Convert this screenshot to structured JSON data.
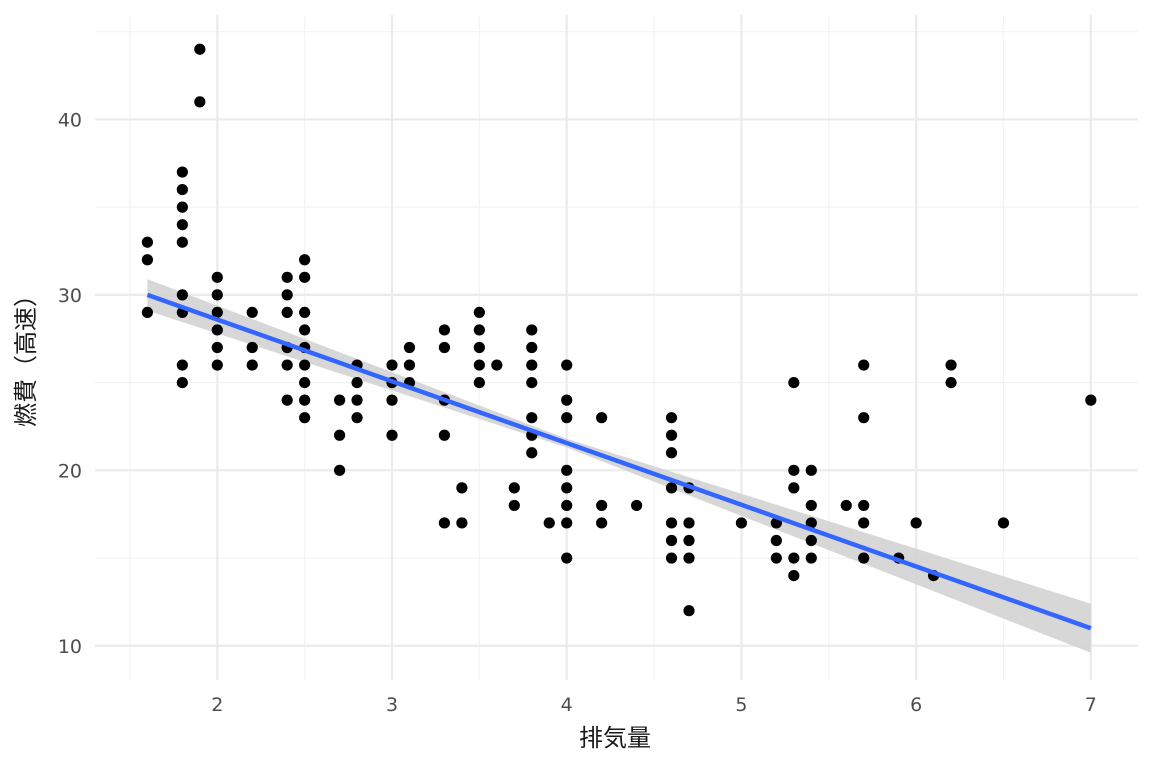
{
  "chart_data": {
    "type": "scatter",
    "xlabel": "排気量",
    "ylabel": "燃費（高速）",
    "xlim": [
      1.3,
      7.27
    ],
    "ylim": [
      8.05,
      45.95
    ],
    "x_ticks": [
      "2",
      "3",
      "4",
      "5",
      "6",
      "7"
    ],
    "y_ticks": [
      "10",
      "20",
      "30",
      "40"
    ],
    "grid": true,
    "colors": {
      "points": "#000000",
      "trend_line": "#3366ff",
      "confidence_band": "#d3d3d3",
      "grid_major": "#ebebeb",
      "grid_minor": "#f3f3f3"
    },
    "trend_line": {
      "x": [
        1.6,
        7.0
      ],
      "y": [
        30.0,
        11.0
      ]
    },
    "confidence_band": {
      "x": [
        1.6,
        7.0
      ],
      "upper": [
        30.9,
        12.4
      ],
      "lower": [
        29.1,
        9.6
      ],
      "mid_x": 4.0,
      "mid_upper": [
        21.8
      ],
      "mid_lower": [
        21.3
      ]
    },
    "points": [
      [
        1.6,
        33
      ],
      [
        1.6,
        32
      ],
      [
        1.6,
        29
      ],
      [
        1.8,
        37
      ],
      [
        1.8,
        36
      ],
      [
        1.8,
        35
      ],
      [
        1.8,
        34
      ],
      [
        1.8,
        33
      ],
      [
        1.8,
        30
      ],
      [
        1.8,
        29
      ],
      [
        1.8,
        26
      ],
      [
        1.8,
        25
      ],
      [
        1.9,
        44
      ],
      [
        1.9,
        41
      ],
      [
        2.0,
        31
      ],
      [
        2.0,
        30
      ],
      [
        2.0,
        29
      ],
      [
        2.0,
        28
      ],
      [
        2.0,
        27
      ],
      [
        2.0,
        26
      ],
      [
        2.2,
        29
      ],
      [
        2.2,
        27
      ],
      [
        2.2,
        26
      ],
      [
        2.4,
        31
      ],
      [
        2.4,
        30
      ],
      [
        2.4,
        29
      ],
      [
        2.4,
        27
      ],
      [
        2.4,
        26
      ],
      [
        2.4,
        24
      ],
      [
        2.5,
        32
      ],
      [
        2.5,
        31
      ],
      [
        2.5,
        29
      ],
      [
        2.5,
        28
      ],
      [
        2.5,
        27
      ],
      [
        2.5,
        26
      ],
      [
        2.5,
        25
      ],
      [
        2.5,
        24
      ],
      [
        2.5,
        23
      ],
      [
        2.7,
        24
      ],
      [
        2.7,
        22
      ],
      [
        2.7,
        20
      ],
      [
        2.8,
        26
      ],
      [
        2.8,
        25
      ],
      [
        2.8,
        24
      ],
      [
        2.8,
        23
      ],
      [
        3.0,
        26
      ],
      [
        3.0,
        25
      ],
      [
        3.0,
        24
      ],
      [
        3.0,
        22
      ],
      [
        3.1,
        27
      ],
      [
        3.1,
        26
      ],
      [
        3.1,
        25
      ],
      [
        3.3,
        28
      ],
      [
        3.3,
        27
      ],
      [
        3.3,
        24
      ],
      [
        3.3,
        22
      ],
      [
        3.3,
        17
      ],
      [
        3.4,
        19
      ],
      [
        3.4,
        17
      ],
      [
        3.5,
        29
      ],
      [
        3.5,
        28
      ],
      [
        3.5,
        27
      ],
      [
        3.5,
        26
      ],
      [
        3.5,
        25
      ],
      [
        3.6,
        26
      ],
      [
        3.7,
        19
      ],
      [
        3.7,
        18
      ],
      [
        3.8,
        28
      ],
      [
        3.8,
        27
      ],
      [
        3.8,
        26
      ],
      [
        3.8,
        25
      ],
      [
        3.8,
        23
      ],
      [
        3.8,
        22
      ],
      [
        3.8,
        21
      ],
      [
        3.9,
        17
      ],
      [
        4.0,
        26
      ],
      [
        4.0,
        24
      ],
      [
        4.0,
        23
      ],
      [
        4.0,
        20
      ],
      [
        4.0,
        19
      ],
      [
        4.0,
        18
      ],
      [
        4.0,
        17
      ],
      [
        4.0,
        15
      ],
      [
        4.2,
        23
      ],
      [
        4.2,
        18
      ],
      [
        4.2,
        17
      ],
      [
        4.4,
        18
      ],
      [
        4.6,
        23
      ],
      [
        4.6,
        22
      ],
      [
        4.6,
        21
      ],
      [
        4.6,
        19
      ],
      [
        4.6,
        17
      ],
      [
        4.6,
        16
      ],
      [
        4.6,
        15
      ],
      [
        4.7,
        19
      ],
      [
        4.7,
        17
      ],
      [
        4.7,
        16
      ],
      [
        4.7,
        15
      ],
      [
        4.7,
        12
      ],
      [
        5.0,
        17
      ],
      [
        5.2,
        17
      ],
      [
        5.2,
        16
      ],
      [
        5.2,
        15
      ],
      [
        5.3,
        25
      ],
      [
        5.3,
        20
      ],
      [
        5.3,
        19
      ],
      [
        5.3,
        15
      ],
      [
        5.3,
        14
      ],
      [
        5.4,
        20
      ],
      [
        5.4,
        18
      ],
      [
        5.4,
        17
      ],
      [
        5.4,
        16
      ],
      [
        5.4,
        15
      ],
      [
        5.6,
        18
      ],
      [
        5.7,
        26
      ],
      [
        5.7,
        23
      ],
      [
        5.7,
        18
      ],
      [
        5.7,
        17
      ],
      [
        5.7,
        15
      ],
      [
        5.9,
        15
      ],
      [
        6.0,
        17
      ],
      [
        6.1,
        14
      ],
      [
        6.2,
        26
      ],
      [
        6.2,
        25
      ],
      [
        6.5,
        17
      ],
      [
        7.0,
        24
      ]
    ]
  }
}
